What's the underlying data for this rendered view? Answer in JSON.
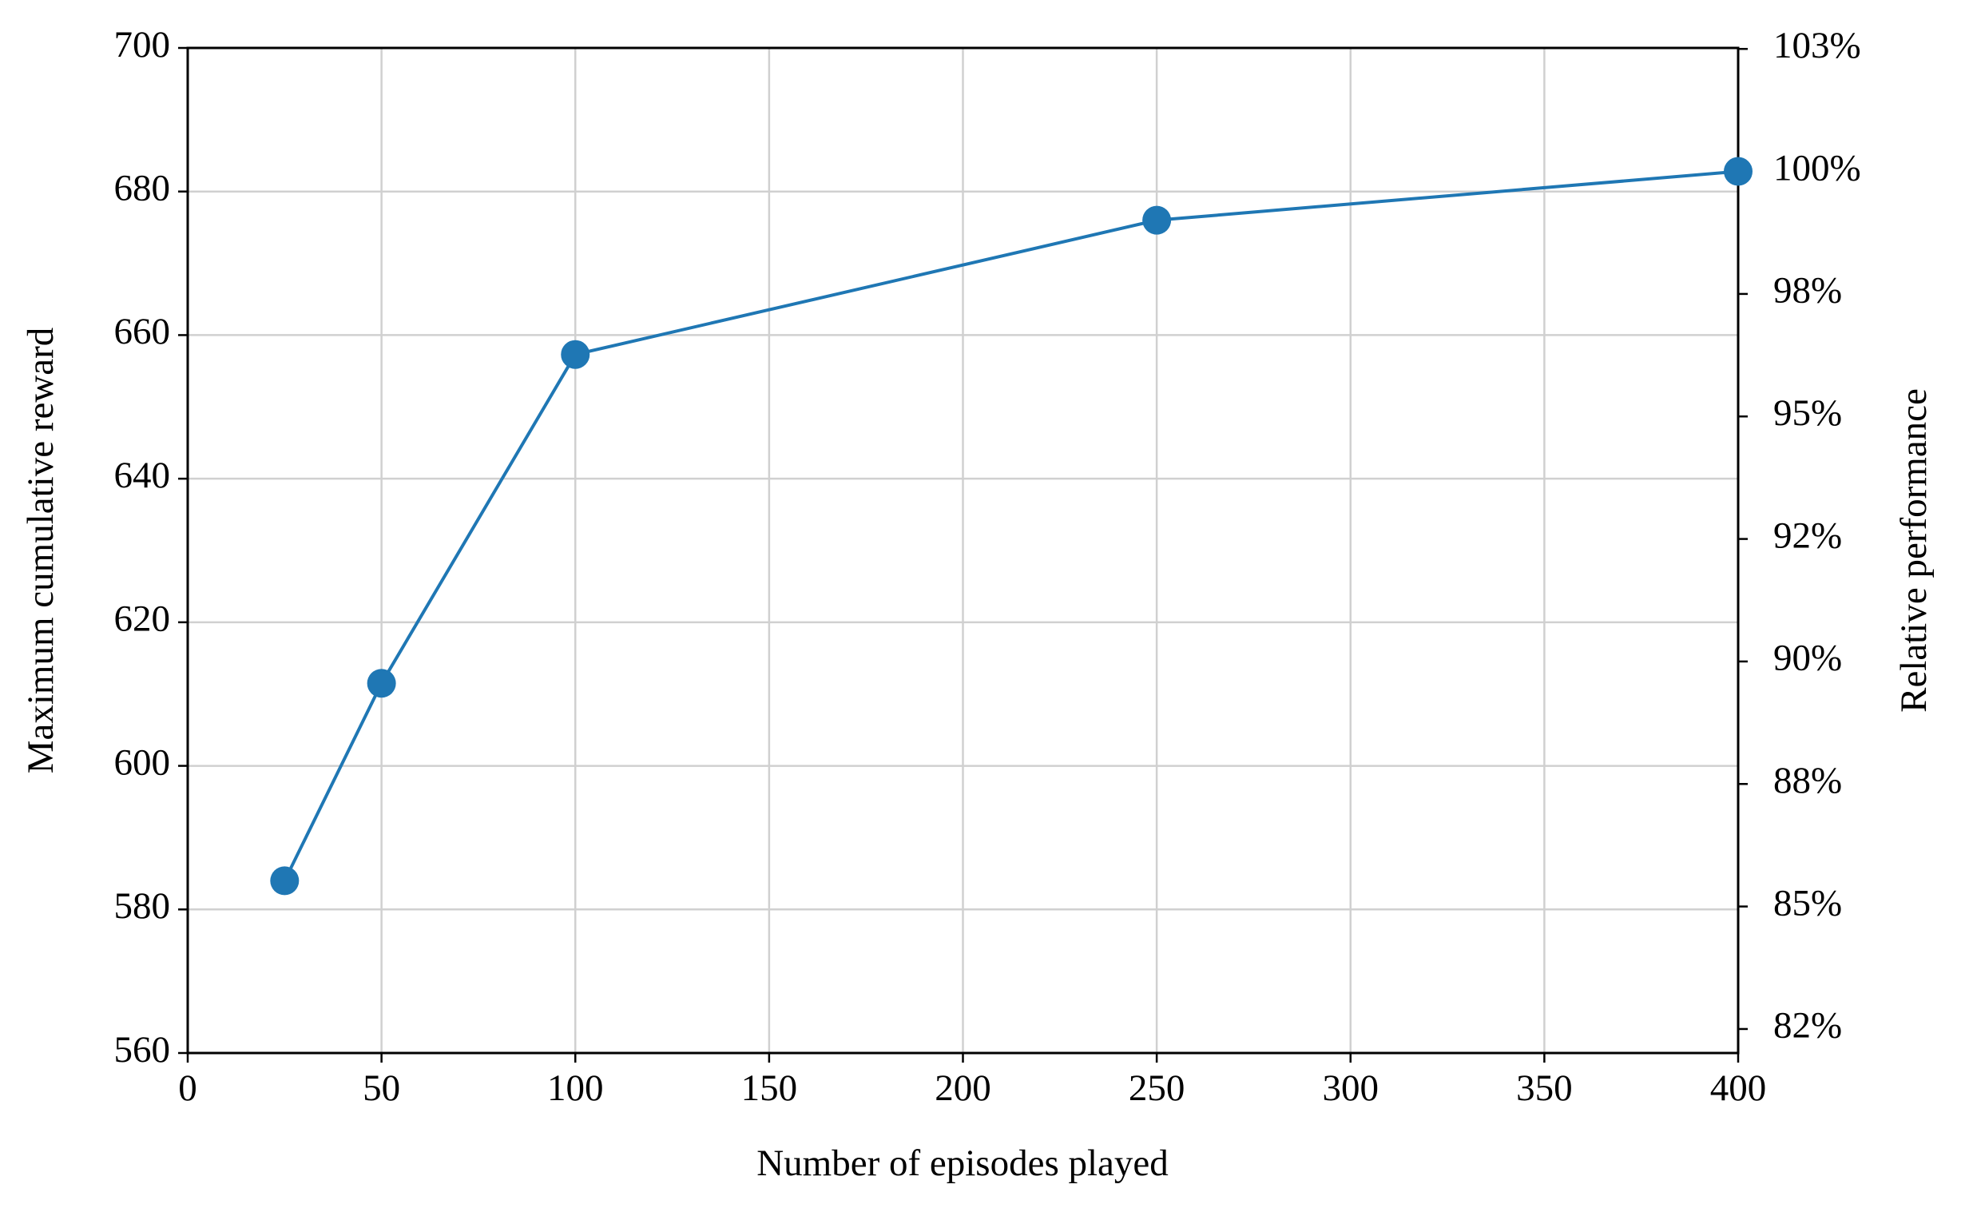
{
  "chart_data": {
    "type": "line",
    "xlabel": "Number of episodes played",
    "ylabel": "Maximum cumulative reward",
    "y2label": "Relative performance",
    "x": [
      25,
      50,
      100,
      250,
      400
    ],
    "series": [
      {
        "name": "Maximum cumulative reward",
        "color": "#1f77b4",
        "values": [
          584,
          611.5,
          657.3,
          676,
          682.8
        ]
      }
    ],
    "xlim": [
      0,
      400
    ],
    "xticks": [
      0,
      50,
      100,
      150,
      200,
      250,
      300,
      350,
      400
    ],
    "ylim": [
      560,
      700
    ],
    "yticks": [
      560,
      580,
      600,
      620,
      640,
      660,
      680,
      700
    ],
    "y2lim": [
      82.01,
      102.52
    ],
    "y2ticks": [
      {
        "value": 82.5,
        "label": "82%"
      },
      {
        "value": 85,
        "label": "85%"
      },
      {
        "value": 87.5,
        "label": "88%"
      },
      {
        "value": 90,
        "label": "90%"
      },
      {
        "value": 92.5,
        "label": "92%"
      },
      {
        "value": 95,
        "label": "95%"
      },
      {
        "value": 97.5,
        "label": "98%"
      },
      {
        "value": 100,
        "label": "100%"
      },
      {
        "value": 102.5,
        "label": "103%"
      }
    ],
    "grid": true
  }
}
